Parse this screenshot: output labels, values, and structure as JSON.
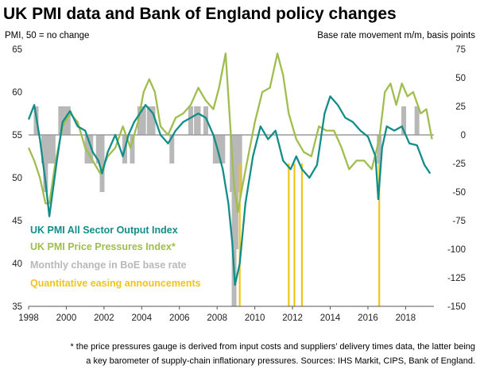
{
  "chart_data": {
    "type": "line",
    "title": "UK PMI data and Bank of England policy changes",
    "ylabel_left": "PMI, 50 = no change",
    "ylabel_right": "Base rate movement m/m, basis points",
    "x_ticks": [
      "1998",
      "2000",
      "2002",
      "2004",
      "2006",
      "2008",
      "2010",
      "2012",
      "2014",
      "2016",
      "2018"
    ],
    "xlim": [
      1998,
      2019.5
    ],
    "y_left_ticks": [
      "65",
      "60",
      "55",
      "50",
      "45",
      "40",
      "35"
    ],
    "y_left_lim": [
      35,
      65
    ],
    "y_right_ticks": [
      "75",
      "50",
      "25",
      "0",
      "-25",
      "-50",
      "-75",
      "-100",
      "-125",
      "-150"
    ],
    "y_right_lim": [
      -150,
      75
    ],
    "grid": false,
    "legend_position": "bottom-left",
    "colors": {
      "output": "#138d87",
      "price": "#9fbe4f",
      "rate": "#b8b8b8",
      "qe": "#f0c419",
      "zero_line": "#9a9a9a"
    },
    "series": [
      {
        "name": "UK PMI All Sector Output Index",
        "axis": "left",
        "x": [
          1998.0,
          1998.3,
          1998.6,
          1998.9,
          1999.1,
          1999.5,
          1999.8,
          2000.2,
          2000.6,
          2001.0,
          2001.4,
          2001.7,
          2001.9,
          2002.2,
          2002.6,
          2003.0,
          2003.3,
          2003.6,
          2003.9,
          2004.2,
          2004.6,
          2005.0,
          2005.4,
          2005.8,
          2006.2,
          2006.6,
          2007.0,
          2007.4,
          2007.8,
          2008.0,
          2008.3,
          2008.6,
          2008.8,
          2008.95,
          2009.2,
          2009.5,
          2009.9,
          2010.3,
          2010.7,
          2011.1,
          2011.5,
          2011.9,
          2012.2,
          2012.5,
          2012.9,
          2013.3,
          2013.7,
          2014.0,
          2014.4,
          2014.8,
          2015.2,
          2015.6,
          2016.0,
          2016.4,
          2016.55,
          2016.75,
          2017.0,
          2017.4,
          2017.8,
          2018.2,
          2018.6,
          2019.0,
          2019.3
        ],
        "y": [
          56.8,
          58.5,
          54.5,
          49.5,
          45.5,
          52.0,
          56.5,
          57.8,
          56.0,
          55.5,
          53.0,
          52.0,
          50.5,
          53.0,
          55.0,
          52.5,
          55.0,
          56.5,
          57.5,
          58.5,
          57.5,
          55.0,
          54.0,
          55.5,
          56.5,
          57.0,
          57.5,
          57.0,
          55.0,
          53.5,
          51.0,
          47.0,
          42.5,
          37.5,
          40.0,
          47.0,
          52.5,
          56.0,
          54.5,
          55.5,
          52.0,
          51.0,
          52.5,
          51.0,
          50.0,
          51.5,
          57.5,
          59.5,
          58.5,
          57.0,
          56.5,
          55.5,
          54.8,
          52.5,
          47.5,
          53.5,
          56.0,
          55.5,
          56.0,
          54.0,
          53.8,
          51.5,
          50.5
        ]
      },
      {
        "name": "UK PMI Price Pressures Index*",
        "axis": "left",
        "x": [
          1998.0,
          1998.3,
          1998.6,
          1998.9,
          1999.1,
          1999.4,
          1999.8,
          2000.2,
          2000.6,
          2001.0,
          2001.4,
          2001.8,
          2002.2,
          2002.6,
          2003.0,
          2003.4,
          2003.8,
          2004.1,
          2004.4,
          2004.7,
          2005.0,
          2005.4,
          2005.8,
          2006.2,
          2006.6,
          2007.0,
          2007.4,
          2007.8,
          2008.1,
          2008.45,
          2008.7,
          2008.9,
          2009.1,
          2009.3,
          2009.6,
          2010.0,
          2010.4,
          2010.8,
          2011.2,
          2011.5,
          2011.8,
          2012.2,
          2012.6,
          2013.0,
          2013.4,
          2013.8,
          2014.2,
          2014.6,
          2015.0,
          2015.4,
          2015.8,
          2016.2,
          2016.6,
          2016.9,
          2017.2,
          2017.5,
          2017.8,
          2018.1,
          2018.4,
          2018.8,
          2019.1,
          2019.4
        ],
        "y": [
          53.5,
          52.0,
          50.0,
          47.0,
          47.0,
          51.5,
          56.0,
          57.5,
          56.5,
          53.5,
          52.0,
          50.5,
          52.5,
          53.5,
          56.0,
          53.5,
          56.5,
          60.0,
          61.5,
          60.0,
          56.0,
          55.0,
          57.0,
          57.5,
          58.5,
          60.5,
          59.0,
          58.0,
          60.5,
          64.5,
          56.0,
          49.0,
          46.0,
          48.5,
          52.0,
          56.5,
          60.0,
          60.5,
          64.5,
          62.0,
          57.5,
          54.5,
          53.0,
          52.5,
          56.0,
          55.5,
          55.5,
          53.5,
          51.0,
          52.0,
          52.0,
          51.0,
          54.5,
          60.0,
          61.0,
          58.5,
          61.0,
          59.5,
          60.0,
          57.5,
          58.0,
          54.5
        ]
      },
      {
        "name": "Monthly change in BoE base rate",
        "axis": "right",
        "type": "bar",
        "x": [
          1998.4,
          1998.8,
          1998.9,
          1999.0,
          1999.1,
          1999.3,
          1999.7,
          1999.9,
          2000.1,
          2001.1,
          2001.3,
          2001.7,
          2001.9,
          2003.1,
          2003.5,
          2003.9,
          2004.1,
          2004.4,
          2004.6,
          2005.6,
          2006.6,
          2006.9,
          2007.0,
          2007.4,
          2007.9,
          2008.1,
          2008.3,
          2008.8,
          2008.9,
          2009.0,
          2009.1,
          2009.2,
          2016.6,
          2017.9,
          2018.6
        ],
        "y": [
          25,
          -25,
          -50,
          -25,
          -25,
          -25,
          25,
          25,
          25,
          -25,
          -25,
          -25,
          -50,
          -25,
          -25,
          25,
          25,
          25,
          25,
          -25,
          25,
          25,
          25,
          25,
          -25,
          -25,
          -25,
          -50,
          -150,
          -100,
          -50,
          -50,
          -25,
          25,
          25
        ]
      },
      {
        "name": "Quantitative easing announcements",
        "type": "vline",
        "x": [
          2009.2,
          2011.8,
          2012.1,
          2012.5,
          2016.6
        ]
      }
    ],
    "footnote": "* the price pressures gauge is derived from input costs and suppliers’ delivery times data, the latter being a key barometer of supply-chain inflationary pressures. Sources: IHS Markit, CIPS, Bank of England."
  }
}
